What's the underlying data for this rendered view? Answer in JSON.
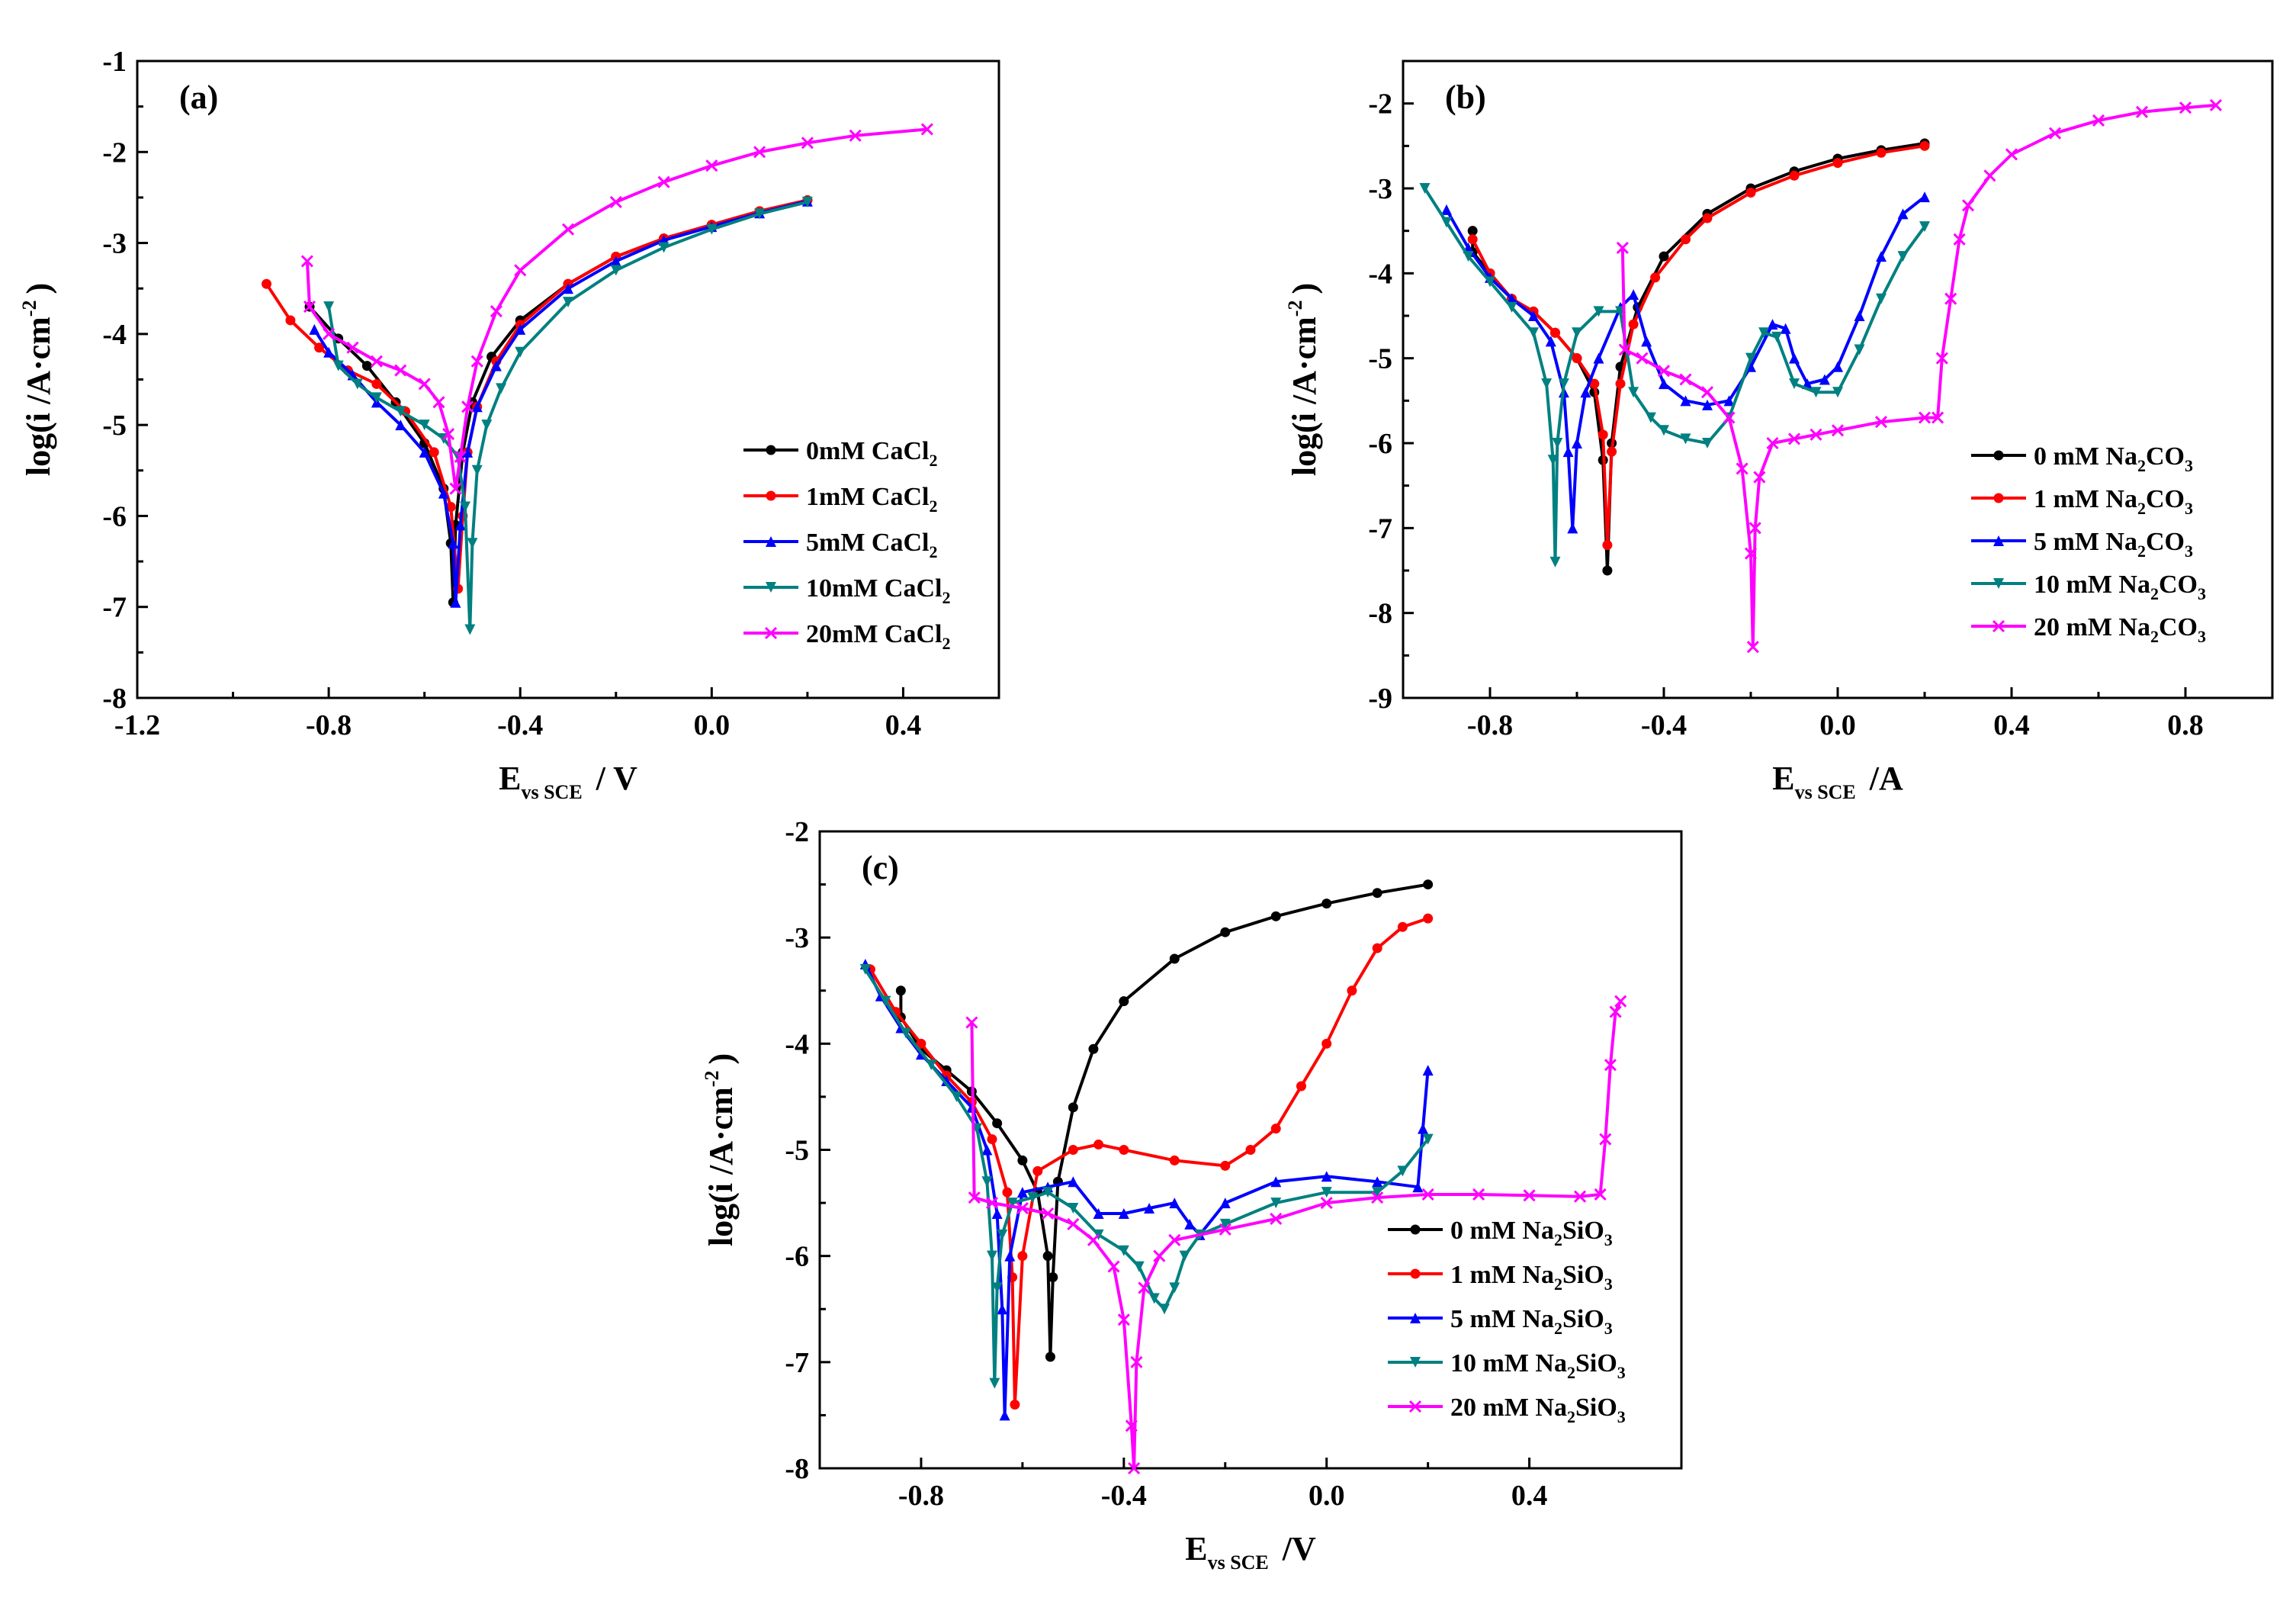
{
  "chart_data": [
    {
      "type": "line",
      "panel_label": "(a)",
      "xlabel": "E",
      "xlabel_sub": "vs SCE",
      "xlabel_unit": "/ V",
      "ylabel": "log(i  /A·cm",
      "ylabel_sup": "-2",
      "ylabel_close": ")",
      "xlim": [
        -1.2,
        0.6
      ],
      "ylim": [
        -8,
        -1
      ],
      "xticks": [
        "-1.2",
        "-0.8",
        "-0.4",
        "0.0",
        "0.4"
      ],
      "xtick_values": [
        -1.2,
        -0.8,
        -0.4,
        0.0,
        0.4
      ],
      "yticks": [
        "-8",
        "-7",
        "-6",
        "-5",
        "-4",
        "-3",
        "-2",
        "-1"
      ],
      "ytick_values": [
        -8,
        -7,
        -6,
        -5,
        -4,
        -3,
        -2,
        -1
      ],
      "legend_position": "bottom-right",
      "series": [
        {
          "name": "0mM CaCl",
          "sub": "2",
          "color": "#000000",
          "marker": "circle",
          "x": [
            -0.84,
            -0.78,
            -0.72,
            -0.66,
            -0.6,
            -0.56,
            -0.545,
            -0.54,
            -0.535,
            -0.52,
            -0.5,
            -0.46,
            -0.4,
            -0.3,
            -0.2,
            -0.1,
            0.0,
            0.1,
            0.2
          ],
          "y": [
            -3.7,
            -4.05,
            -4.35,
            -4.75,
            -5.2,
            -5.7,
            -6.3,
            -6.95,
            -6.1,
            -5.3,
            -4.75,
            -4.25,
            -3.85,
            -3.45,
            -3.15,
            -2.95,
            -2.8,
            -2.65,
            -2.53
          ]
        },
        {
          "name": "1mM CaCl",
          "sub": "2",
          "color": "#ff0000",
          "marker": "circle",
          "x": [
            -0.93,
            -0.88,
            -0.82,
            -0.76,
            -0.7,
            -0.64,
            -0.58,
            -0.545,
            -0.53,
            -0.52,
            -0.51,
            -0.49,
            -0.45,
            -0.4,
            -0.3,
            -0.2,
            -0.1,
            0.0,
            0.1,
            0.2
          ],
          "y": [
            -3.45,
            -3.85,
            -4.15,
            -4.4,
            -4.55,
            -4.85,
            -5.3,
            -5.9,
            -6.8,
            -6.0,
            -5.3,
            -4.8,
            -4.3,
            -3.9,
            -3.45,
            -3.15,
            -2.95,
            -2.8,
            -2.65,
            -2.53
          ]
        },
        {
          "name": "5mM CaCl",
          "sub": "2",
          "color": "#0000ff",
          "marker": "triangle-up",
          "x": [
            -0.83,
            -0.8,
            -0.75,
            -0.7,
            -0.65,
            -0.6,
            -0.56,
            -0.54,
            -0.535,
            -0.525,
            -0.51,
            -0.49,
            -0.45,
            -0.4,
            -0.3,
            -0.2,
            -0.1,
            0.0,
            0.1,
            0.2
          ],
          "y": [
            -3.95,
            -4.2,
            -4.45,
            -4.75,
            -5.0,
            -5.3,
            -5.75,
            -6.3,
            -6.95,
            -6.1,
            -5.3,
            -4.8,
            -4.35,
            -3.95,
            -3.5,
            -3.2,
            -2.97,
            -2.82,
            -2.67,
            -2.54
          ]
        },
        {
          "name": "10mM CaCl",
          "sub": "2",
          "color": "#008080",
          "marker": "triangle-down",
          "x": [
            -0.8,
            -0.78,
            -0.74,
            -0.7,
            -0.65,
            -0.6,
            -0.56,
            -0.53,
            -0.515,
            -0.505,
            -0.5,
            -0.49,
            -0.47,
            -0.44,
            -0.4,
            -0.3,
            -0.2,
            -0.1,
            0.0,
            0.1,
            0.2
          ],
          "y": [
            -3.7,
            -4.35,
            -4.55,
            -4.7,
            -4.85,
            -5.0,
            -5.15,
            -5.35,
            -5.9,
            -7.25,
            -6.3,
            -5.5,
            -5.0,
            -4.6,
            -4.2,
            -3.65,
            -3.3,
            -3.05,
            -2.85,
            -2.68,
            -2.55
          ]
        },
        {
          "name": "20mM CaCl",
          "sub": "2",
          "color": "#ff00ff",
          "marker": "cross",
          "x": [
            -0.845,
            -0.84,
            -0.8,
            -0.75,
            -0.7,
            -0.65,
            -0.6,
            -0.57,
            -0.55,
            -0.535,
            -0.525,
            -0.51,
            -0.49,
            -0.45,
            -0.4,
            -0.3,
            -0.2,
            -0.1,
            0.0,
            0.1,
            0.2,
            0.3,
            0.45
          ],
          "y": [
            -3.2,
            -3.7,
            -4.0,
            -4.15,
            -4.3,
            -4.4,
            -4.55,
            -4.75,
            -5.1,
            -5.7,
            -5.35,
            -4.8,
            -4.3,
            -3.75,
            -3.3,
            -2.85,
            -2.55,
            -2.33,
            -2.15,
            -2.0,
            -1.9,
            -1.82,
            -1.75
          ]
        }
      ]
    },
    {
      "type": "line",
      "panel_label": "(b)",
      "xlabel": "E",
      "xlabel_sub": "vs SCE",
      "xlabel_unit": "/A",
      "ylabel": "log(i  /A·cm",
      "ylabel_sup": "-2",
      "ylabel_close": ")",
      "xlim": [
        -1.0,
        1.0
      ],
      "ylim": [
        -9,
        -1.5
      ],
      "xticks": [
        "-0.8",
        "-0.4",
        "0.0",
        "0.4",
        "0.8"
      ],
      "xtick_values": [
        -0.8,
        -0.4,
        0.0,
        0.4,
        0.8
      ],
      "yticks": [
        "-9",
        "-8",
        "-7",
        "-6",
        "-5",
        "-4",
        "-3",
        "-2"
      ],
      "ytick_values": [
        -9,
        -8,
        -7,
        -6,
        -5,
        -4,
        -3,
        -2
      ],
      "legend_position": "bottom-right",
      "series": [
        {
          "name": "0 mM Na",
          "sub": "2",
          "name2": "CO",
          "sub2": "3",
          "color": "#000000",
          "marker": "circle",
          "x": [
            -0.84,
            -0.84,
            -0.8,
            -0.75,
            -0.7,
            -0.65,
            -0.6,
            -0.56,
            -0.54,
            -0.53,
            -0.52,
            -0.5,
            -0.46,
            -0.4,
            -0.3,
            -0.2,
            -0.1,
            0.0,
            0.1,
            0.2
          ],
          "y": [
            -3.5,
            -3.75,
            -4.0,
            -4.3,
            -4.45,
            -4.7,
            -5.0,
            -5.4,
            -6.2,
            -7.5,
            -6.0,
            -5.1,
            -4.4,
            -3.8,
            -3.3,
            -3.0,
            -2.8,
            -2.65,
            -2.55,
            -2.47
          ]
        },
        {
          "name": "1 mM Na",
          "sub": "2",
          "name2": "CO",
          "sub2": "3",
          "color": "#ff0000",
          "marker": "circle",
          "x": [
            -0.84,
            -0.8,
            -0.75,
            -0.7,
            -0.65,
            -0.6,
            -0.56,
            -0.54,
            -0.53,
            -0.52,
            -0.5,
            -0.47,
            -0.42,
            -0.35,
            -0.3,
            -0.2,
            -0.1,
            0.0,
            0.1,
            0.2
          ],
          "y": [
            -3.6,
            -4.0,
            -4.3,
            -4.45,
            -4.7,
            -5.0,
            -5.3,
            -5.9,
            -7.2,
            -6.1,
            -5.3,
            -4.6,
            -4.05,
            -3.6,
            -3.35,
            -3.05,
            -2.85,
            -2.7,
            -2.58,
            -2.5
          ]
        },
        {
          "name": "5 mM Na",
          "sub": "2",
          "name2": "CO",
          "sub2": "3",
          "color": "#0000ff",
          "marker": "triangle-up",
          "x": [
            -0.9,
            -0.85,
            -0.8,
            -0.75,
            -0.7,
            -0.66,
            -0.63,
            -0.62,
            -0.61,
            -0.6,
            -0.58,
            -0.55,
            -0.5,
            -0.47,
            -0.44,
            -0.4,
            -0.35,
            -0.3,
            -0.25,
            -0.2,
            -0.15,
            -0.12,
            -0.1,
            -0.07,
            -0.03,
            0.0,
            0.05,
            0.1,
            0.15,
            0.2
          ],
          "y": [
            -3.25,
            -3.7,
            -4.05,
            -4.3,
            -4.5,
            -4.8,
            -5.4,
            -6.1,
            -7.0,
            -6.0,
            -5.4,
            -5.0,
            -4.4,
            -4.25,
            -4.8,
            -5.3,
            -5.5,
            -5.55,
            -5.5,
            -5.1,
            -4.6,
            -4.65,
            -5.0,
            -5.3,
            -5.25,
            -5.1,
            -4.5,
            -3.8,
            -3.3,
            -3.1
          ]
        },
        {
          "name": "10 mM Na",
          "sub": "2",
          "name2": "CO",
          "sub2": "3",
          "color": "#008080",
          "marker": "triangle-down",
          "x": [
            -0.95,
            -0.9,
            -0.85,
            -0.8,
            -0.75,
            -0.7,
            -0.67,
            -0.655,
            -0.65,
            -0.645,
            -0.63,
            -0.6,
            -0.55,
            -0.5,
            -0.47,
            -0.43,
            -0.4,
            -0.35,
            -0.3,
            -0.25,
            -0.2,
            -0.17,
            -0.14,
            -0.1,
            -0.05,
            0.0,
            0.05,
            0.1,
            0.15,
            0.2
          ],
          "y": [
            -3.0,
            -3.4,
            -3.8,
            -4.1,
            -4.4,
            -4.7,
            -5.3,
            -6.2,
            -7.4,
            -6.0,
            -5.3,
            -4.7,
            -4.45,
            -4.45,
            -5.4,
            -5.7,
            -5.85,
            -5.95,
            -6.0,
            -5.7,
            -5.0,
            -4.7,
            -4.75,
            -5.3,
            -5.4,
            -5.4,
            -4.9,
            -4.3,
            -3.8,
            -3.45
          ]
        },
        {
          "name": "20 mM Na",
          "sub": "2",
          "name2": "CO",
          "sub2": "3",
          "color": "#ff00ff",
          "marker": "cross",
          "x": [
            -0.495,
            -0.49,
            -0.45,
            -0.4,
            -0.35,
            -0.3,
            -0.25,
            -0.22,
            -0.2,
            -0.195,
            -0.19,
            -0.18,
            -0.15,
            -0.1,
            -0.05,
            0.0,
            0.1,
            0.2,
            0.23,
            0.24,
            0.26,
            0.28,
            0.3,
            0.35,
            0.4,
            0.5,
            0.6,
            0.7,
            0.8,
            0.87
          ],
          "y": [
            -3.7,
            -4.9,
            -5.0,
            -5.15,
            -5.25,
            -5.4,
            -5.7,
            -6.3,
            -7.3,
            -8.4,
            -7.0,
            -6.4,
            -6.0,
            -5.95,
            -5.9,
            -5.85,
            -5.75,
            -5.7,
            -5.7,
            -5.0,
            -4.3,
            -3.6,
            -3.2,
            -2.85,
            -2.6,
            -2.35,
            -2.2,
            -2.1,
            -2.05,
            -2.02
          ]
        }
      ]
    },
    {
      "type": "line",
      "panel_label": "(c)",
      "xlabel": "E",
      "xlabel_sub": "vs SCE",
      "xlabel_unit": "/V",
      "ylabel": "log(i  /A·cm",
      "ylabel_sup": "-2",
      "ylabel_close": ")",
      "xlim": [
        -1.0,
        0.7
      ],
      "ylim": [
        -8,
        -2
      ],
      "xticks": [
        "-0.8",
        "-0.4",
        "0.0",
        "0.4"
      ],
      "xtick_values": [
        -0.8,
        -0.4,
        0.0,
        0.4
      ],
      "yticks": [
        "-8",
        "-7",
        "-6",
        "-5",
        "-4",
        "-3",
        "-2"
      ],
      "ytick_values": [
        -8,
        -7,
        -6,
        -5,
        -4,
        -3,
        -2
      ],
      "legend_position": "bottom-right",
      "series": [
        {
          "name": "0 mM Na",
          "sub": "2",
          "name2": "SiO",
          "sub2": "3",
          "color": "#000000",
          "marker": "circle",
          "x": [
            -0.84,
            -0.84,
            -0.8,
            -0.75,
            -0.7,
            -0.65,
            -0.6,
            -0.57,
            -0.55,
            -0.545,
            -0.54,
            -0.53,
            -0.5,
            -0.46,
            -0.4,
            -0.3,
            -0.2,
            -0.1,
            0.0,
            0.1,
            0.2
          ],
          "y": [
            -3.5,
            -3.75,
            -4.05,
            -4.25,
            -4.45,
            -4.75,
            -5.1,
            -5.4,
            -6.0,
            -6.95,
            -6.2,
            -5.3,
            -4.6,
            -4.05,
            -3.6,
            -3.2,
            -2.95,
            -2.8,
            -2.68,
            -2.58,
            -2.5
          ]
        },
        {
          "name": "1 mM Na",
          "sub": "2",
          "name2": "SiO",
          "sub2": "3",
          "color": "#ff0000",
          "marker": "circle",
          "x": [
            -0.9,
            -0.85,
            -0.8,
            -0.75,
            -0.7,
            -0.66,
            -0.63,
            -0.62,
            -0.615,
            -0.6,
            -0.57,
            -0.5,
            -0.45,
            -0.4,
            -0.3,
            -0.2,
            -0.15,
            -0.1,
            -0.05,
            0.0,
            0.05,
            0.1,
            0.15,
            0.2
          ],
          "y": [
            -3.3,
            -3.7,
            -4.0,
            -4.3,
            -4.55,
            -4.9,
            -5.4,
            -6.2,
            -7.4,
            -6.0,
            -5.2,
            -5.0,
            -4.95,
            -5.0,
            -5.1,
            -5.15,
            -5.0,
            -4.8,
            -4.4,
            -4.0,
            -3.5,
            -3.1,
            -2.9,
            -2.82
          ]
        },
        {
          "name": "5 mM Na",
          "sub": "2",
          "name2": "SiO",
          "sub2": "3",
          "color": "#0000ff",
          "marker": "triangle-up",
          "x": [
            -0.91,
            -0.88,
            -0.84,
            -0.8,
            -0.75,
            -0.7,
            -0.67,
            -0.65,
            -0.64,
            -0.635,
            -0.625,
            -0.6,
            -0.55,
            -0.5,
            -0.45,
            -0.4,
            -0.35,
            -0.3,
            -0.27,
            -0.25,
            -0.2,
            -0.1,
            0.0,
            0.1,
            0.18,
            0.19,
            0.2
          ],
          "y": [
            -3.25,
            -3.55,
            -3.85,
            -4.1,
            -4.35,
            -4.6,
            -5.0,
            -5.6,
            -6.5,
            -7.5,
            -6.0,
            -5.4,
            -5.35,
            -5.3,
            -5.6,
            -5.6,
            -5.55,
            -5.5,
            -5.7,
            -5.8,
            -5.5,
            -5.3,
            -5.25,
            -5.3,
            -5.35,
            -4.8,
            -4.25
          ]
        },
        {
          "name": "10 mM Na",
          "sub": "2",
          "name2": "SiO",
          "sub2": "3",
          "color": "#008080",
          "marker": "triangle-down",
          "x": [
            -0.91,
            -0.87,
            -0.83,
            -0.78,
            -0.73,
            -0.69,
            -0.67,
            -0.66,
            -0.655,
            -0.65,
            -0.64,
            -0.62,
            -0.58,
            -0.55,
            -0.5,
            -0.45,
            -0.4,
            -0.37,
            -0.34,
            -0.32,
            -0.3,
            -0.28,
            -0.25,
            -0.2,
            -0.1,
            0.0,
            0.1,
            0.15,
            0.2
          ],
          "y": [
            -3.3,
            -3.6,
            -3.9,
            -4.2,
            -4.5,
            -4.8,
            -5.3,
            -6.0,
            -7.2,
            -6.3,
            -5.8,
            -5.5,
            -5.45,
            -5.4,
            -5.55,
            -5.8,
            -5.95,
            -6.1,
            -6.4,
            -6.5,
            -6.3,
            -6.0,
            -5.8,
            -5.7,
            -5.5,
            -5.4,
            -5.4,
            -5.2,
            -4.9
          ]
        },
        {
          "name": "20 mM Na",
          "sub": "2",
          "name2": "SiO",
          "sub2": "3",
          "color": "#ff00ff",
          "marker": "cross",
          "x": [
            -0.7,
            -0.695,
            -0.66,
            -0.6,
            -0.55,
            -0.5,
            -0.46,
            -0.42,
            -0.4,
            -0.385,
            -0.38,
            -0.375,
            -0.36,
            -0.33,
            -0.3,
            -0.2,
            -0.1,
            0.0,
            0.1,
            0.2,
            0.3,
            0.4,
            0.5,
            0.54,
            0.55,
            0.56,
            0.57,
            0.58
          ],
          "y": [
            -3.8,
            -5.45,
            -5.5,
            -5.55,
            -5.6,
            -5.7,
            -5.85,
            -6.1,
            -6.6,
            -7.6,
            -8.0,
            -7.0,
            -6.3,
            -6.0,
            -5.85,
            -5.75,
            -5.65,
            -5.5,
            -5.45,
            -5.42,
            -5.42,
            -5.43,
            -5.44,
            -5.42,
            -4.9,
            -4.2,
            -3.7,
            -3.6
          ]
        }
      ]
    }
  ]
}
